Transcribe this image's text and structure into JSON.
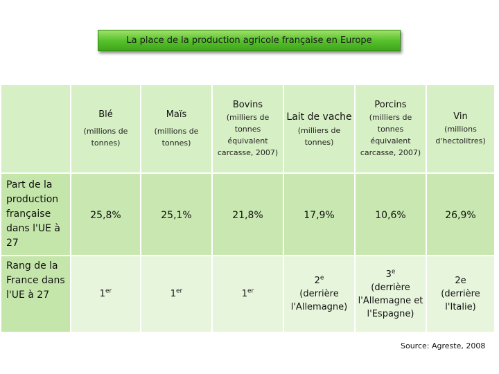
{
  "title": "La place de la production agricole française en Europe",
  "columns": [
    {
      "name": "Blé",
      "unit": "(millions de tonnes)"
    },
    {
      "name": "Maïs",
      "unit": "(millions de tonnes)"
    },
    {
      "name": "Bovins",
      "unit": "(milliers de tonnes équivalent carcasse, 2007)"
    },
    {
      "name": "Lait de vache",
      "unit": "(milliers de tonnes)"
    },
    {
      "name": "Porcins",
      "unit": "(milliers de tonnes équivalent carcasse, 2007)"
    },
    {
      "name": "Vin",
      "unit": "(millions d'hectolitres)"
    }
  ],
  "rows": {
    "share": {
      "label": "Part de la production française dans l'UE à 27",
      "values": [
        "25,8%",
        "25,1%",
        "21,8%",
        "17,9%",
        "10,6%",
        "26,9%"
      ]
    },
    "rank": {
      "label": "Rang de la France dans l'UE à 27",
      "values": [
        {
          "num": "1",
          "suffix": "er",
          "note": ""
        },
        {
          "num": "1",
          "suffix": "er",
          "note": ""
        },
        {
          "num": "1",
          "suffix": "er",
          "note": ""
        },
        {
          "num": "2",
          "suffix": "e",
          "note": "(derrière l'Allemagne)"
        },
        {
          "num": "3",
          "suffix": "e",
          "note": "(derrière l'Allemagne et l'Espagne)"
        },
        {
          "num": "2e",
          "suffix": "",
          "note": "(derrière l'Italie)"
        }
      ]
    }
  },
  "source": "Source: Agreste, 2008"
}
